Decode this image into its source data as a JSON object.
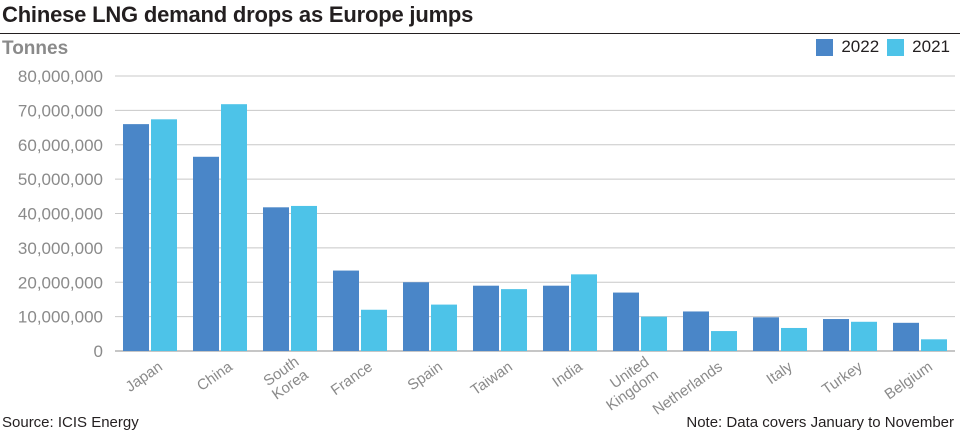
{
  "chart_data": {
    "type": "bar",
    "title": "Chinese LNG demand drops as Europe jumps",
    "ylabel": "Tonnes",
    "xlabel": "",
    "ylim": [
      0,
      80000000
    ],
    "yticks": [
      0,
      10000000,
      20000000,
      30000000,
      40000000,
      50000000,
      60000000,
      70000000,
      80000000
    ],
    "ytick_labels": [
      "0",
      "10,000,000",
      "20,000,000",
      "30,000,000",
      "40,000,000",
      "50,000,000",
      "60,000,000",
      "70,000,000",
      "80,000,000"
    ],
    "grid": true,
    "legend_position": "top-right",
    "categories": [
      "Japan",
      "China",
      "South Korea",
      "France",
      "Spain",
      "Taiwan",
      "India",
      "United Kingdom",
      "Netherlands",
      "Italy",
      "Turkey",
      "Belgium"
    ],
    "category_label_lines": [
      [
        "Japan"
      ],
      [
        "China"
      ],
      [
        "South",
        "Korea"
      ],
      [
        "France"
      ],
      [
        "Spain"
      ],
      [
        "Taiwan"
      ],
      [
        "India"
      ],
      [
        "United",
        "Kingdom"
      ],
      [
        "Netherlands"
      ],
      [
        "Italy"
      ],
      [
        "Turkey"
      ],
      [
        "Belgium"
      ]
    ],
    "series": [
      {
        "name": "2022",
        "color": "#4a86c8",
        "values": [
          66000000,
          56500000,
          41800000,
          23400000,
          20000000,
          19000000,
          19000000,
          17000000,
          11500000,
          9800000,
          9300000,
          8200000
        ]
      },
      {
        "name": "2021",
        "color": "#4dc3e8",
        "values": [
          67400000,
          71800000,
          42200000,
          12000000,
          13500000,
          18000000,
          22300000,
          10000000,
          5800000,
          6700000,
          8500000,
          3400000
        ]
      }
    ],
    "source": "Source: ICIS Energy",
    "note": "Note: Data covers January to November"
  }
}
